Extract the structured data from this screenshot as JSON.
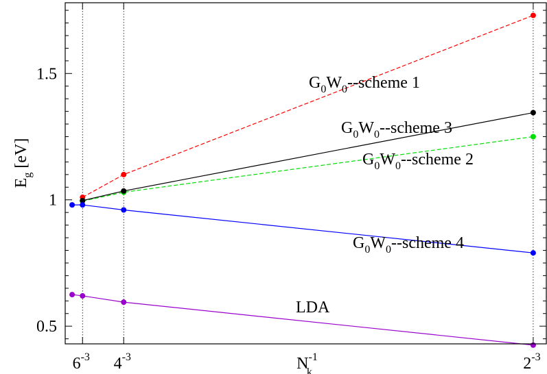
{
  "chart_data": {
    "type": "line",
    "xlabel": {
      "base": "N",
      "sub": "k",
      "sup": "-1"
    },
    "ylabel": {
      "base": "E",
      "sub": "g",
      "rest": " [eV]"
    },
    "xlim": [
      0.0,
      0.1285
    ],
    "ylim": [
      0.43,
      1.78
    ],
    "yticks": [
      {
        "value": 0.5,
        "label": "0.5"
      },
      {
        "value": 1.0,
        "label": "1"
      },
      {
        "value": 1.5,
        "label": "1.5"
      }
    ],
    "xticks": [
      {
        "value": 0.00463,
        "base": "6",
        "sup": "-3"
      },
      {
        "value": 0.015625,
        "base": "4",
        "sup": "-3"
      },
      {
        "value": 0.125,
        "base": "2",
        "sup": "-3"
      }
    ],
    "grid": "vertical dotted lines at x ticks",
    "series": [
      {
        "name": "G0W0--scheme 1",
        "label": {
          "g": "G",
          "g_sub": "0",
          "w": "W",
          "w_sub": "0",
          "rest": "--scheme 1"
        },
        "color": "#ff0000",
        "dash": true,
        "x": [
          0.00463,
          0.015625,
          0.125
        ],
        "y": [
          1.01,
          1.1,
          1.73
        ]
      },
      {
        "name": "G0W0--scheme 2",
        "label": {
          "g": "G",
          "g_sub": "0",
          "w": "W",
          "w_sub": "0",
          "rest": "--scheme 2"
        },
        "color": "#00dd00",
        "dash": true,
        "x": [
          0.00463,
          0.015625,
          0.125
        ],
        "y": [
          0.995,
          1.03,
          1.25
        ]
      },
      {
        "name": "G0W0--scheme 3",
        "label": {
          "g": "G",
          "g_sub": "0",
          "w": "W",
          "w_sub": "0",
          "rest": "--scheme 3"
        },
        "color": "#000000",
        "dash": false,
        "x": [
          0.00463,
          0.015625,
          0.125
        ],
        "y": [
          0.997,
          1.035,
          1.345
        ]
      },
      {
        "name": "G0W0--scheme 4",
        "label": {
          "g": "G",
          "g_sub": "0",
          "w": "W",
          "w_sub": "0",
          "rest": "--scheme 4"
        },
        "color": "#0000ff",
        "dash": false,
        "x": [
          0.00185,
          0.00463,
          0.015625,
          0.125
        ],
        "y": [
          0.98,
          0.98,
          0.96,
          0.79
        ]
      },
      {
        "name": "LDA",
        "label": {
          "g": "",
          "g_sub": "",
          "w": "",
          "w_sub": "",
          "rest": "LDA"
        },
        "color": "#9900cc",
        "dash": false,
        "x": [
          0.00185,
          0.00463,
          0.015625,
          0.125
        ],
        "y": [
          0.625,
          0.62,
          0.595,
          0.425
        ]
      }
    ]
  }
}
